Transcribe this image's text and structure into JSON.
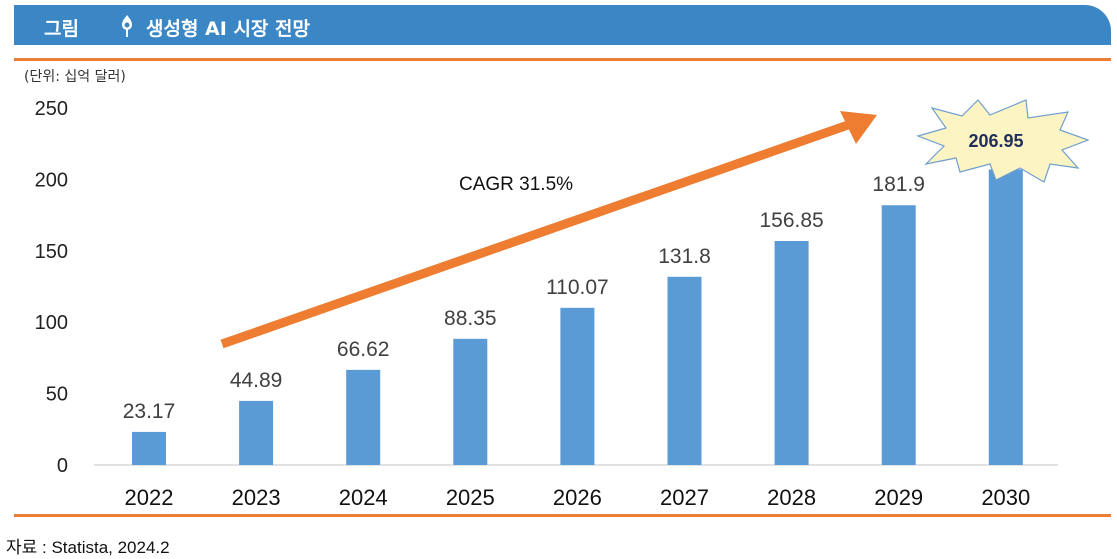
{
  "header": {
    "label": "그림",
    "title": "생성형 AI 시장 전망",
    "icon": "bulb-pin-icon"
  },
  "unit": "(단위: 십억 달러)",
  "source": "자료 : Statista,  2024.2",
  "colors": {
    "bar": "#5b9bd5",
    "arrow": "#ee7d31",
    "header": "#3b86c4",
    "burst": "#fdf4c4"
  },
  "chart_data": {
    "type": "bar",
    "title": "생성형 AI 시장 전망",
    "ylabel": "(단위: 십억 달러)",
    "xlabel": "",
    "categories": [
      "2022",
      "2023",
      "2024",
      "2025",
      "2026",
      "2027",
      "2028",
      "2029",
      "2030"
    ],
    "values": [
      23.17,
      44.89,
      66.62,
      88.35,
      110.07,
      131.8,
      156.85,
      181.9,
      206.95
    ],
    "value_labels": [
      "23.17",
      "44.89",
      "66.62",
      "88.35",
      "110.07",
      "131.8",
      "156.85",
      "181.9",
      "206.95"
    ],
    "yticks": [
      "0",
      "50",
      "100",
      "150",
      "200",
      "250"
    ],
    "ylim": [
      0,
      250
    ],
    "grid": false,
    "annotation": "CAGR 31.5%",
    "highlight_index": 8
  }
}
